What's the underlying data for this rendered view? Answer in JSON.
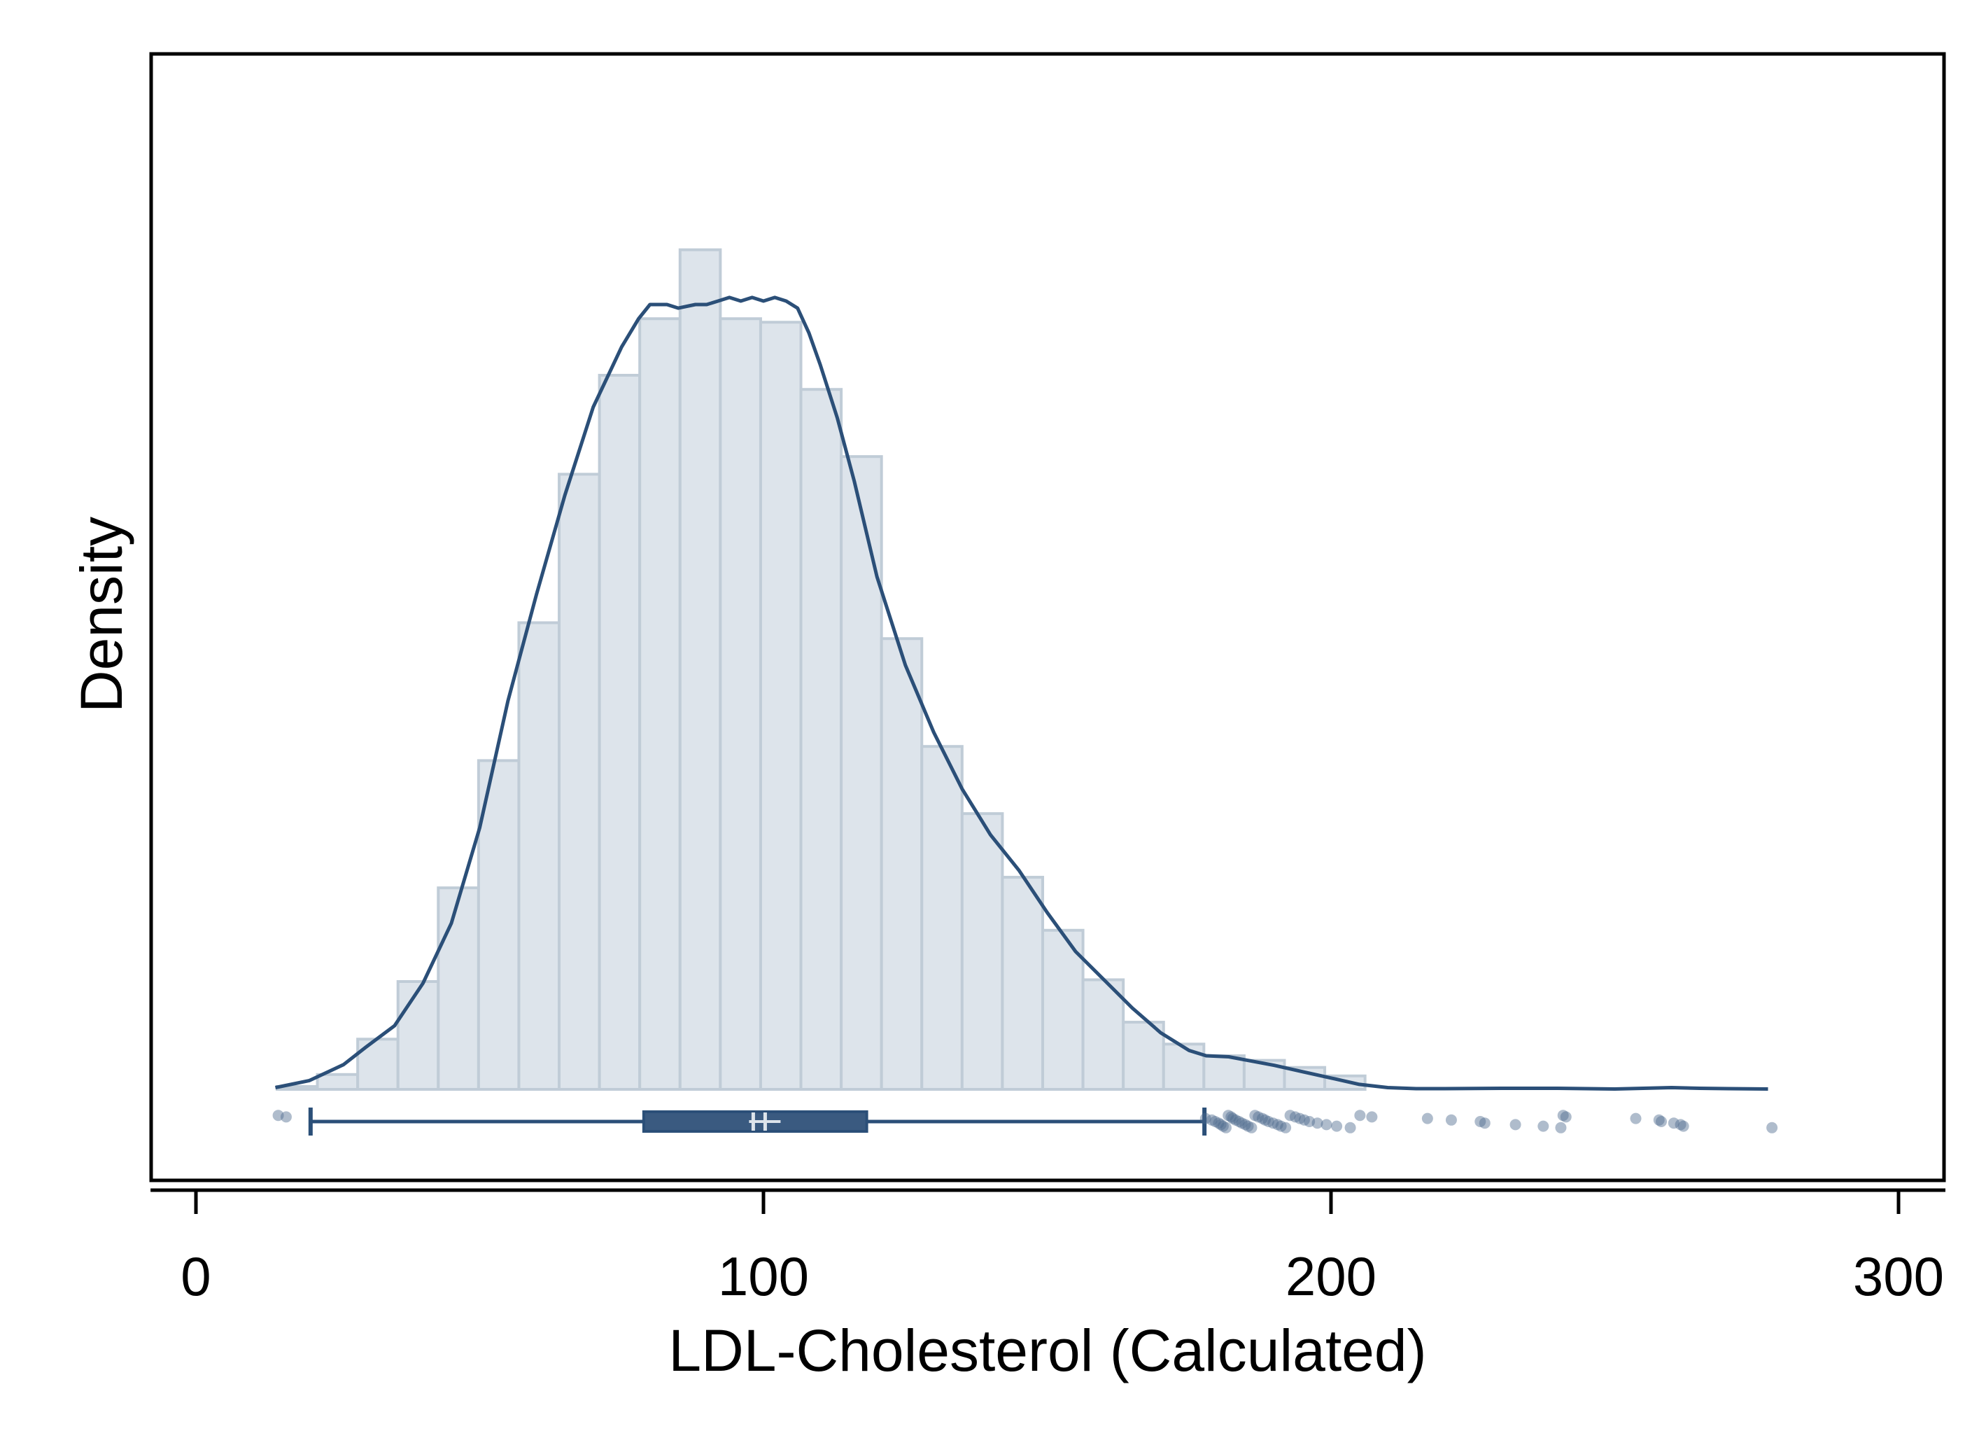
{
  "chart_data": {
    "type": "histogram",
    "xlabel": "LDL-Cholesterol (Calculated)",
    "ylabel": "Density",
    "xlim": [
      -8,
      308
    ],
    "x_ticks": [
      0,
      100,
      200,
      300
    ],
    "y_ticks_shown": false,
    "grid": false,
    "legend": "none",
    "colors": {
      "bar_fill": "#dde4eb",
      "bar_stroke": "#c0ccd7",
      "line": "#2b4f78",
      "box_fill": "#3a5a80",
      "outlier": "#4d6b8f",
      "axis": "#000000"
    },
    "histogram": {
      "bin_width": 7.1,
      "bins": [
        {
          "x0": 14.3,
          "x1": 21.4,
          "density": 8e-05
        },
        {
          "x0": 21.4,
          "x1": 28.5,
          "density": 0.00042
        },
        {
          "x0": 28.5,
          "x1": 35.6,
          "density": 0.00142
        },
        {
          "x0": 35.6,
          "x1": 42.7,
          "density": 0.00305
        },
        {
          "x0": 42.7,
          "x1": 49.8,
          "density": 0.0057
        },
        {
          "x0": 49.8,
          "x1": 56.9,
          "density": 0.0093
        },
        {
          "x0": 56.9,
          "x1": 64.0,
          "density": 0.0132
        },
        {
          "x0": 64.0,
          "x1": 71.1,
          "density": 0.0174
        },
        {
          "x0": 71.1,
          "x1": 78.2,
          "density": 0.0202
        },
        {
          "x0": 78.2,
          "x1": 85.3,
          "density": 0.0218
        },
        {
          "x0": 85.3,
          "x1": 92.4,
          "density": 0.02375
        },
        {
          "x0": 92.4,
          "x1": 99.5,
          "density": 0.0218
        },
        {
          "x0": 99.5,
          "x1": 106.6,
          "density": 0.0217
        },
        {
          "x0": 106.6,
          "x1": 113.7,
          "density": 0.0198
        },
        {
          "x0": 113.7,
          "x1": 120.8,
          "density": 0.0179
        },
        {
          "x0": 120.8,
          "x1": 127.9,
          "density": 0.01275
        },
        {
          "x0": 127.9,
          "x1": 135.0,
          "density": 0.0097
        },
        {
          "x0": 135.0,
          "x1": 142.1,
          "density": 0.0078
        },
        {
          "x0": 142.1,
          "x1": 149.2,
          "density": 0.006
        },
        {
          "x0": 149.2,
          "x1": 156.3,
          "density": 0.0045
        },
        {
          "x0": 156.3,
          "x1": 163.4,
          "density": 0.0031
        },
        {
          "x0": 163.4,
          "x1": 170.5,
          "density": 0.0019
        },
        {
          "x0": 170.5,
          "x1": 177.6,
          "density": 0.00128
        },
        {
          "x0": 177.6,
          "x1": 184.7,
          "density": 0.00095
        },
        {
          "x0": 184.7,
          "x1": 191.8,
          "density": 0.00082
        },
        {
          "x0": 191.8,
          "x1": 198.9,
          "density": 0.00062
        },
        {
          "x0": 198.9,
          "x1": 206.0,
          "density": 0.00038
        }
      ]
    },
    "kde": {
      "x": [
        14,
        20,
        26,
        30,
        35,
        40,
        45,
        50,
        55,
        60,
        65,
        70,
        75,
        78,
        80,
        83,
        85,
        88,
        90,
        92,
        94,
        96,
        98,
        100,
        102,
        104,
        106,
        108,
        110,
        113,
        116,
        120,
        125,
        130,
        135,
        140,
        145,
        150,
        155,
        160,
        165,
        170,
        175,
        178,
        182,
        185,
        190,
        195,
        200,
        205,
        210,
        215,
        220,
        230,
        240,
        250,
        260,
        265,
        270,
        277
      ],
      "y": [
        5e-05,
        0.00025,
        0.0007,
        0.0012,
        0.0018,
        0.003,
        0.0047,
        0.0074,
        0.011,
        0.014,
        0.0168,
        0.0193,
        0.021,
        0.0218,
        0.0222,
        0.0222,
        0.0221,
        0.0222,
        0.0222,
        0.0223,
        0.0224,
        0.0223,
        0.0224,
        0.0223,
        0.0224,
        0.0223,
        0.0221,
        0.0214,
        0.0205,
        0.019,
        0.0172,
        0.0145,
        0.012,
        0.0101,
        0.0085,
        0.0072,
        0.0062,
        0.005,
        0.0039,
        0.0031,
        0.0023,
        0.0016,
        0.0011,
        0.00095,
        0.00092,
        0.00083,
        0.00068,
        0.0005,
        0.00032,
        0.00014,
        5e-05,
        2e-05,
        2e-05,
        3e-05,
        3e-05,
        1e-05,
        5e-05,
        3e-05,
        2e-05,
        1e-05
      ]
    },
    "boxplot": {
      "whisker_low": 20.2,
      "q1": 78.9,
      "median": 98.2,
      "mean": 100.3,
      "q3": 118.2,
      "whisker_high": 177.7,
      "outliers": [
        14.5,
        15.9,
        177.9,
        179.0,
        179.6,
        180.2,
        180.6,
        181.0,
        181.5,
        181.9,
        182.4,
        182.7,
        183.2,
        183.8,
        184.3,
        184.9,
        185.4,
        186.0,
        186.6,
        187.2,
        187.9,
        188.4,
        189.0,
        189.8,
        190.6,
        191.2,
        192.0,
        192.8,
        193.7,
        194.5,
        195.3,
        196.2,
        197.6,
        199.2,
        201.0,
        203.4,
        205.1,
        207.2,
        217.0,
        221.2,
        226.3,
        227.1,
        232.5,
        237.4,
        240.5,
        240.9,
        241.4,
        253.7,
        257.8,
        258.2,
        260.4,
        261.6,
        262.1,
        277.7
      ]
    }
  }
}
